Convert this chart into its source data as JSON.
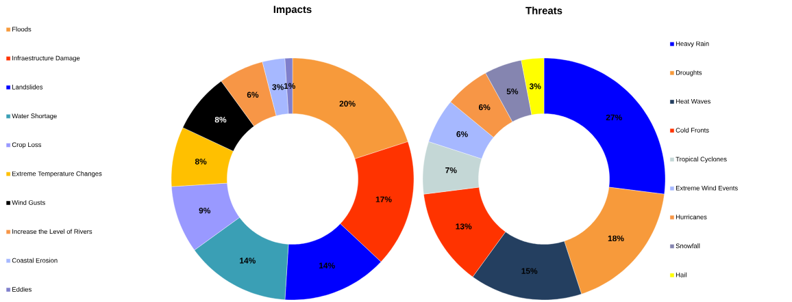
{
  "chart_data": [
    {
      "type": "donut",
      "title": "Impacts",
      "legend": "left",
      "data_labels": true,
      "categories": [
        "Floods",
        "Infraestructure Damage",
        "Landslides",
        "Water Shortage",
        "Crop Loss",
        "Extreme Temperature Changes",
        "Wind Gusts",
        "Increase the Level of Rivers",
        "Coastal Erosion",
        "Eddies"
      ],
      "values": [
        20,
        17,
        14,
        14,
        9,
        8,
        8,
        6,
        3,
        1
      ],
      "value_labels": [
        "20%",
        "17%",
        "14%",
        "14%",
        "9%",
        "8%",
        "8%",
        "6%",
        "3%",
        "1%"
      ],
      "colors": [
        "#f79a3b",
        "#ff3300",
        "#0000ff",
        "#3a9fb5",
        "#9999ff",
        "#ffc000",
        "#000000",
        "#f79646",
        "#a6b8ff",
        "#7f7fcc"
      ]
    },
    {
      "type": "donut",
      "title": "Threats",
      "legend": "right",
      "data_labels": true,
      "categories": [
        "Heavy Rain",
        "Droughts",
        "Heat Waves",
        "Cold Fronts",
        "Tropical Cyclones",
        "Extreme Wind Events",
        "Hurricanes",
        "Snowfall",
        "Hail"
      ],
      "values": [
        27,
        18,
        15,
        13,
        7,
        6,
        6,
        5,
        3
      ],
      "value_labels": [
        "27%",
        "18%",
        "15%",
        "13%",
        "7%",
        "6%",
        "6%",
        "5%",
        "3%"
      ],
      "colors": [
        "#0000ff",
        "#f79a3b",
        "#243f60",
        "#ff3300",
        "#c4d7d6",
        "#a6b8ff",
        "#f79646",
        "#8585b0",
        "#ffff00"
      ]
    }
  ]
}
